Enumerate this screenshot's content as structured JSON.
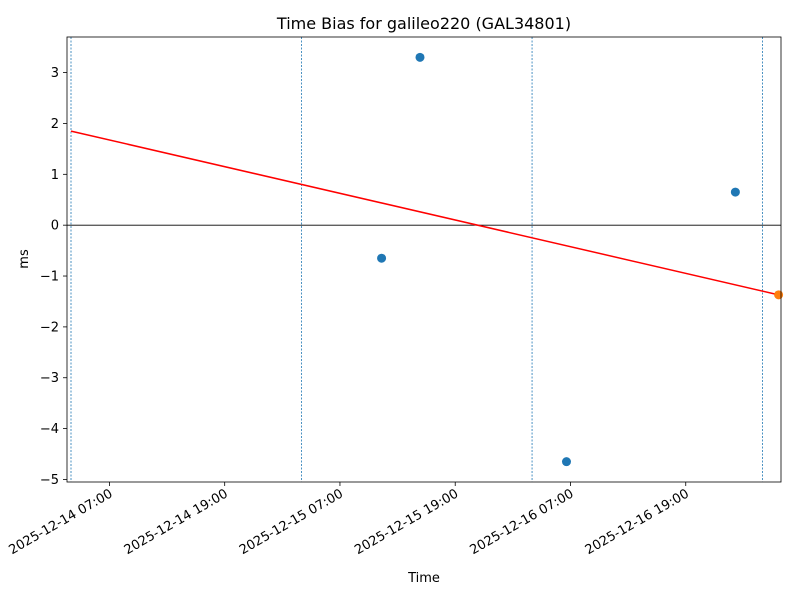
{
  "chart_data": {
    "type": "scatter",
    "title": "Time Bias for galileo220 (GAL34801)",
    "xlabel": "Time",
    "ylabel": "ms",
    "ylim": [
      -5.05,
      3.7
    ],
    "xlim": [
      "2025-12-14 02:35",
      "2025-12-17 04:55"
    ],
    "yticks": [
      3,
      2,
      1,
      0,
      -1,
      -2,
      -3,
      -4,
      -5
    ],
    "ytick_labels": [
      "3",
      "2",
      "1",
      "0",
      "−1",
      "−2",
      "−3",
      "−4",
      "−5"
    ],
    "xticks": [
      "2025-12-14 07:00",
      "2025-12-14 19:00",
      "2025-12-15 07:00",
      "2025-12-15 19:00",
      "2025-12-16 07:00",
      "2025-12-16 19:00"
    ],
    "xtick_labels": [
      "2025-12-14 07:00",
      "2025-12-14 19:00",
      "2025-12-15 07:00",
      "2025-12-15 19:00",
      "2025-12-16 07:00",
      "2025-12-16 19:00"
    ],
    "vlines": [
      "2025-12-14 03:00",
      "2025-12-15 03:00",
      "2025-12-16 03:00",
      "2025-12-17 03:00"
    ],
    "hline": 0,
    "series": [
      {
        "kind": "points",
        "color": "#1f77b4",
        "points": [
          {
            "x": "2025-12-15 11:20",
            "y": -0.65
          },
          {
            "x": "2025-12-15 15:20",
            "y": 3.3
          },
          {
            "x": "2025-12-16 06:35",
            "y": -4.65
          },
          {
            "x": "2025-12-17 00:10",
            "y": 0.65
          }
        ]
      },
      {
        "kind": "points",
        "color": "#ff7f0e",
        "points": [
          {
            "x": "2025-12-17 04:40",
            "y": -1.37
          }
        ]
      },
      {
        "kind": "line",
        "color": "#ff0000",
        "points": [
          {
            "x": "2025-12-14 03:00",
            "y": 1.85
          },
          {
            "x": "2025-12-17 04:40",
            "y": -1.37
          }
        ]
      }
    ],
    "grid": false,
    "vline_color": "#1f77b4",
    "hline_color": "#000000"
  }
}
